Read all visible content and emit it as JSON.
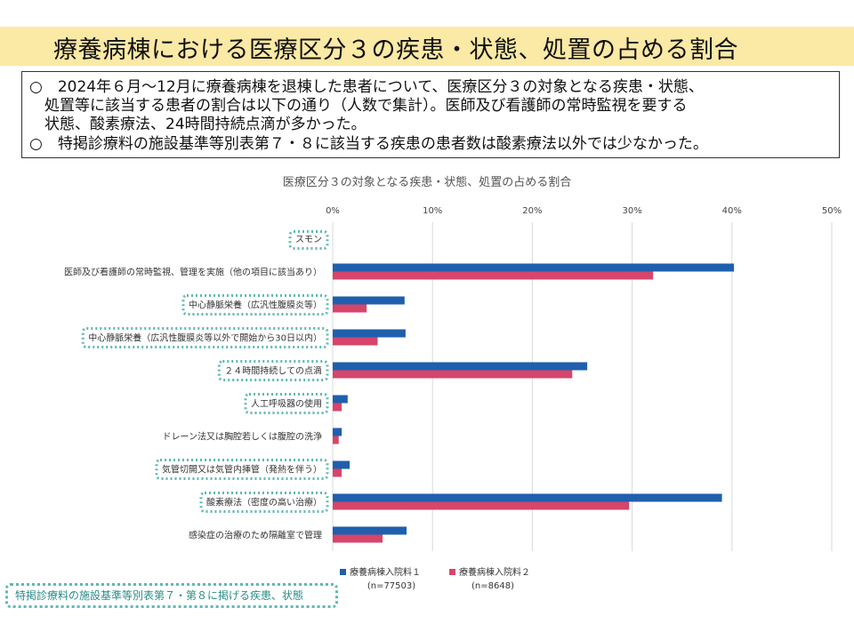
{
  "header": {
    "title": "療養病棟における医療区分３の疾患・状態、処置の占める割合"
  },
  "summary": {
    "line1": "○　2024年６月～12月に療養病棟を退棟した患者について、医療区分３の対象となる疾患・状態、",
    "line2": "　処置等に該当する患者の割合は以下の通り（人数で集計）。医師及び看護師の常時監視を要する",
    "line3": "　状態、酸素療法、24時間持続点滴が多かった。",
    "line4": "○　特掲診療料の施設基準等別表第７・８に該当する疾患の患者数は酸素療法以外では少なかった。"
  },
  "chart_data": {
    "type": "bar",
    "orientation": "horizontal",
    "title": "医療区分３の対象となる疾患・状態、処置の占める割合",
    "xlim": [
      0,
      50
    ],
    "x_ticks": [
      "0%",
      "10%",
      "20%",
      "30%",
      "40%",
      "50%"
    ],
    "grid": true,
    "legend_position": "bottom",
    "categories": [
      "スモン",
      "医師及び看護師の常時監視、管理を実施（他の項目に該当あり）",
      "中心静脈栄養（広汎性腹膜炎等）",
      "中心静脈栄養（広汎性腹膜炎等以外で開始から30日以内）",
      "２４時間持続しての点滴",
      "人工呼吸器の使用",
      "ドレーン法又は胸腔若しくは腹腔の洗浄",
      "気管切開又は気管内挿管（発熱を伴う）",
      "酸素療法（密度の高い治療）",
      "感染症の治療のため隔離室で管理"
    ],
    "highlighted": [
      true,
      false,
      true,
      true,
      true,
      true,
      false,
      true,
      true,
      false
    ],
    "series": [
      {
        "name": "療養病棟入院料１",
        "note": "(n=77503)",
        "color": "#1f5fae",
        "values": [
          0,
          40.2,
          7.2,
          7.3,
          25.5,
          1.5,
          0.9,
          1.7,
          39.0,
          7.4
        ]
      },
      {
        "name": "療養病棟入院料２",
        "note": "(n=8648)",
        "color": "#d6456b",
        "values": [
          0,
          32.1,
          3.4,
          4.5,
          24.0,
          0.9,
          0.6,
          0.9,
          29.7,
          5.0
        ]
      }
    ]
  },
  "footnote": {
    "text": "特掲診療料の施設基準等別表第７・第８に掲げる疾患、状態"
  }
}
